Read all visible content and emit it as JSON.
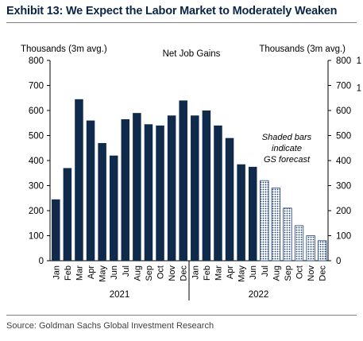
{
  "title": "Exhibit 13: We Expect the Labor Market to Moderately Weaken",
  "source": "Source: Goldman Sachs Global Investment Research",
  "chart_data": {
    "type": "bar",
    "title": "Net Job Gains",
    "ylabel_left": "Thousands (3m avg.)",
    "ylabel_right": "Thousands (3m avg.)",
    "right_edge_label": "1",
    "ylim": [
      0,
      800
    ],
    "yticks": [
      0,
      100,
      200,
      300,
      400,
      500,
      600,
      700,
      800
    ],
    "categories": [
      "Jan",
      "Feb",
      "Mar",
      "Apr",
      "May",
      "Jun",
      "Jul",
      "Aug",
      "Sep",
      "Oct",
      "Nov",
      "Dec",
      "Jan",
      "Feb",
      "Mar",
      "Apr",
      "May",
      "Jun",
      "Jul",
      "Aug",
      "Sep",
      "Oct",
      "Nov",
      "Dec"
    ],
    "years": [
      {
        "label": "2021",
        "start": 0,
        "end": 11
      },
      {
        "label": "2022",
        "start": 12,
        "end": 23
      }
    ],
    "values": [
      245,
      370,
      645,
      560,
      470,
      420,
      565,
      590,
      545,
      540,
      580,
      640,
      580,
      600,
      540,
      490,
      385,
      375,
      320,
      290,
      210,
      140,
      100,
      80
    ],
    "forecast_from_index": 18,
    "annotation": [
      "Shaded bars",
      "indicate",
      "GS forecast"
    ],
    "colors": {
      "actual": "#0f2a4a",
      "forecast_hatch": "#1d3f73"
    },
    "grid": false
  }
}
